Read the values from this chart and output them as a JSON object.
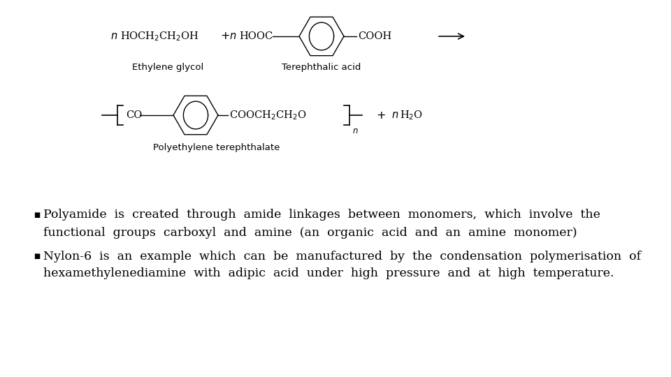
{
  "background_color": "#ffffff",
  "bullet1_line1": "Polyamide  is  created  through  amide  linkages  between  monomers,  which  involve  the",
  "bullet1_line2": "functional  groups  carboxyl  and  amine  (an  organic  acid  and  an  amine  monomer)",
  "bullet2_line1": "Nylon-6  is  an  example  which  can  be  manufactured  by  the  condensation  polymerisation  of",
  "bullet2_line2": "hexamethylenediamine  with  adipic  acid  under  high  pressure  and  at  high  temperature.",
  "text_color": "#000000",
  "font_size": 12.5,
  "chem_font_size": 10.5,
  "label_font_size": 9.5
}
